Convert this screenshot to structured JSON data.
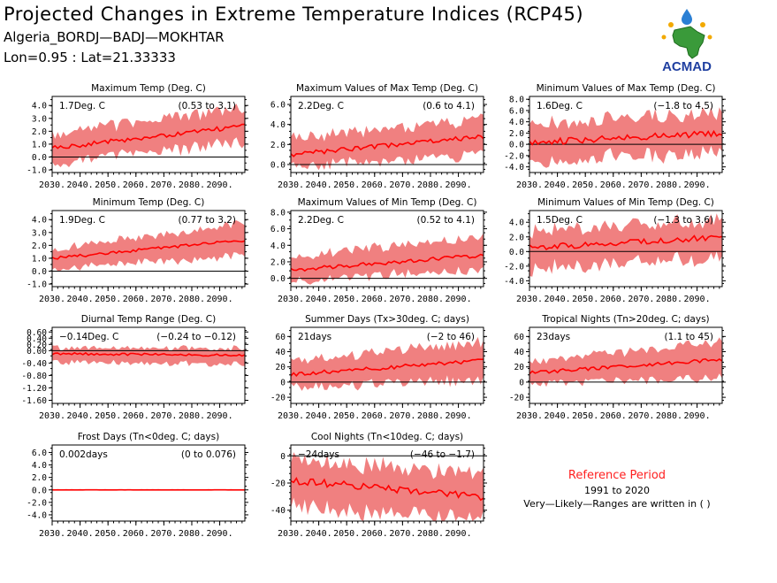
{
  "header": {
    "title": "Projected Changes in Extreme Temperature Indices (RCP45)",
    "station": "Algeria_BORDJ—BADJ—MOKHTAR",
    "coords": "Lon=0.95 : Lat=21.33333"
  },
  "logo": {
    "text": "ACMAD",
    "icon": "africa-map-logo"
  },
  "reference": {
    "title": "Reference Period",
    "years": "1991 to 2020",
    "note": "Very—Likely—Ranges are written in ( )"
  },
  "colors": {
    "band": "#f08080",
    "line": "#ff0000",
    "text": "#000000",
    "reference": "#ff2020"
  },
  "chart_data": [
    {
      "type": "area",
      "title": "Maximum Temp (Deg. C)",
      "value_label": "1.7Deg. C",
      "range_label": "(0.53 to 3.1)",
      "ylim": [
        -1.2,
        4.7
      ],
      "yticks": [
        -1.0,
        0.0,
        1.0,
        2.0,
        3.0,
        4.0
      ],
      "tick_labels": [
        "-1.0",
        "0.0",
        "1.0",
        "2.0",
        "3.0",
        "4.0"
      ],
      "x_start": 2030,
      "x_end": 2099,
      "xticks": [
        2030,
        2040,
        2050,
        2060,
        2070,
        2080,
        2090
      ],
      "x_tick_labels": [
        "2030.",
        "2040.",
        "2050.",
        "2060.",
        "2070.",
        "2080.",
        "2090."
      ],
      "median_start": 0.7,
      "median_end": 2.4,
      "low_start": -0.3,
      "low_end": 1.3,
      "high_start": 1.7,
      "high_end": 3.7
    },
    {
      "type": "area",
      "title": "Maximum Values of Max Temp (Deg. C)",
      "value_label": "2.2Deg. C",
      "range_label": "(0.6 to 4.1)",
      "ylim": [
        -0.8,
        6.8
      ],
      "yticks": [
        0.0,
        2.0,
        4.0,
        6.0
      ],
      "tick_labels": [
        "0.0",
        "2.0",
        "4.0",
        "6.0"
      ],
      "x_start": 2030,
      "x_end": 2099,
      "xticks": [
        2030,
        2040,
        2050,
        2060,
        2070,
        2080,
        2090
      ],
      "x_tick_labels": [
        "2030.",
        "2040.",
        "2050.",
        "2060.",
        "2070.",
        "2080.",
        "2090."
      ],
      "median_start": 1.0,
      "median_end": 2.8,
      "low_start": 0.0,
      "low_end": 1.2,
      "high_start": 2.5,
      "high_end": 4.4
    },
    {
      "type": "area",
      "title": "Minimum Values of Max Temp (Deg. C)",
      "value_label": "1.6Deg. C",
      "range_label": "(−1.8 to 4.5)",
      "ylim": [
        -5.0,
        8.5
      ],
      "yticks": [
        -4.0,
        -2.0,
        0.0,
        2.0,
        4.0,
        6.0,
        8.0
      ],
      "tick_labels": [
        "-4.0",
        "-2.0",
        "0.0",
        "2.0",
        "4.0",
        "6.0",
        "8.0"
      ],
      "x_start": 2030,
      "x_end": 2099,
      "xticks": [
        2030,
        2040,
        2050,
        2060,
        2070,
        2080,
        2090
      ],
      "x_tick_labels": [
        "2030.",
        "2040.",
        "2050.",
        "2060.",
        "2070.",
        "2080.",
        "2090."
      ],
      "median_start": 0.3,
      "median_end": 2.0,
      "low_start": -2.5,
      "low_end": -1.0,
      "high_start": 3.5,
      "high_end": 5.0
    },
    {
      "type": "area",
      "title": "Minimum Temp (Deg. C)",
      "value_label": "1.9Deg. C",
      "range_label": "(0.77 to 3.2)",
      "ylim": [
        -1.2,
        4.7
      ],
      "yticks": [
        -1.0,
        0.0,
        1.0,
        2.0,
        3.0,
        4.0
      ],
      "tick_labels": [
        "-1.0",
        "0.0",
        "1.0",
        "2.0",
        "3.0",
        "4.0"
      ],
      "x_start": 2030,
      "x_end": 2099,
      "xticks": [
        2030,
        2040,
        2050,
        2060,
        2070,
        2080,
        2090
      ],
      "x_tick_labels": [
        "2030.",
        "2040.",
        "2050.",
        "2060.",
        "2070.",
        "2080.",
        "2090."
      ],
      "median_start": 1.0,
      "median_end": 2.4,
      "low_start": 0.3,
      "low_end": 1.3,
      "high_start": 1.6,
      "high_end": 3.6
    },
    {
      "type": "area",
      "title": "Maximum Values of Min Temp (Deg. C)",
      "value_label": "2.2Deg. C",
      "range_label": "(0.52 to 4.1)",
      "ylim": [
        -1.0,
        8.2
      ],
      "yticks": [
        0.0,
        2.0,
        4.0,
        6.0,
        8.0
      ],
      "tick_labels": [
        "0.0",
        "2.0",
        "4.0",
        "6.0",
        "8.0"
      ],
      "x_start": 2030,
      "x_end": 2099,
      "xticks": [
        2030,
        2040,
        2050,
        2060,
        2070,
        2080,
        2090
      ],
      "x_tick_labels": [
        "2030.",
        "2040.",
        "2050.",
        "2060.",
        "2070.",
        "2080.",
        "2090."
      ],
      "median_start": 1.0,
      "median_end": 2.8,
      "low_start": 0.0,
      "low_end": 1.2,
      "high_start": 2.5,
      "high_end": 4.8
    },
    {
      "type": "area",
      "title": "Minimum Values of Min Temp (Deg. C)",
      "value_label": "1.5Deg. C",
      "range_label": "(−1.3 to 3.6)",
      "ylim": [
        -4.8,
        5.6
      ],
      "yticks": [
        -4.0,
        -2.0,
        0.0,
        2.0,
        4.0
      ],
      "tick_labels": [
        "-4.0",
        "-2.0",
        "0.0",
        "2.0",
        "4.0"
      ],
      "x_start": 2030,
      "x_end": 2099,
      "xticks": [
        2030,
        2040,
        2050,
        2060,
        2070,
        2080,
        2090
      ],
      "x_tick_labels": [
        "2030.",
        "2040.",
        "2050.",
        "2060.",
        "2070.",
        "2080.",
        "2090."
      ],
      "median_start": 0.5,
      "median_end": 2.0,
      "low_start": -2.0,
      "low_end": -0.5,
      "high_start": 2.5,
      "high_end": 4.0
    },
    {
      "type": "area",
      "title": "Diurnal Temp Range (Deg. C)",
      "value_label": "−0.14Deg. C",
      "range_label": "(−0.24 to −0.12)",
      "ylim": [
        -1.7,
        0.75
      ],
      "yticks": [
        -1.6,
        -1.2,
        -0.8,
        -0.4,
        0.0,
        0.2,
        0.4,
        0.6
      ],
      "tick_labels": [
        "-1.60",
        "-1.20",
        "-0.80",
        "-0.40",
        "0.00",
        "0.20",
        "0.40",
        "0.60"
      ],
      "x_start": 2030,
      "x_end": 2099,
      "xticks": [
        2030,
        2040,
        2050,
        2060,
        2070,
        2080,
        2090
      ],
      "x_tick_labels": [
        "2030.",
        "2040.",
        "2050.",
        "2060.",
        "2070.",
        "2080.",
        "2090."
      ],
      "median_start": -0.1,
      "median_end": -0.15,
      "low_start": -0.35,
      "low_end": -0.4,
      "high_start": 0.05,
      "high_end": 0.05
    },
    {
      "type": "area",
      "title": "Summer Days (Tx>30deg. C; days)",
      "value_label": "21days",
      "range_label": "(−2 to 46)",
      "ylim": [
        -28,
        72
      ],
      "yticks": [
        -20,
        0,
        20,
        40,
        60
      ],
      "tick_labels": [
        "-20",
        "0",
        "20",
        "40",
        "60"
      ],
      "x_start": 2030,
      "x_end": 2099,
      "xticks": [
        2030,
        2040,
        2050,
        2060,
        2070,
        2080,
        2090
      ],
      "x_tick_labels": [
        "2030.",
        "2040.",
        "2050.",
        "2060.",
        "2070.",
        "2080.",
        "2090."
      ],
      "median_start": 10,
      "median_end": 28,
      "low_start": -5,
      "low_end": 5,
      "high_start": 25,
      "high_end": 50
    },
    {
      "type": "area",
      "title": "Tropical Nights (Tn>20deg. C; days)",
      "value_label": "23days",
      "range_label": "(1.1 to 45)",
      "ylim": [
        -28,
        72
      ],
      "yticks": [
        -20,
        0,
        20,
        40,
        60
      ],
      "tick_labels": [
        "-20",
        "0",
        "20",
        "40",
        "60"
      ],
      "x_start": 2030,
      "x_end": 2099,
      "xticks": [
        2030,
        2040,
        2050,
        2060,
        2070,
        2080,
        2090
      ],
      "x_tick_labels": [
        "2030.",
        "2040.",
        "2050.",
        "2060.",
        "2070.",
        "2080.",
        "2090."
      ],
      "median_start": 12,
      "median_end": 30,
      "low_start": 0,
      "low_end": 8,
      "high_start": 25,
      "high_end": 52
    },
    {
      "type": "area",
      "title": "Frost Days (Tn<0deg. C; days)",
      "value_label": "0.002days",
      "range_label": "(0 to 0.076)",
      "ylim": [
        -5,
        7.2
      ],
      "yticks": [
        -4.0,
        -2.0,
        0.0,
        2.0,
        4.0,
        6.0
      ],
      "tick_labels": [
        "-4.0",
        "-2.0",
        "0.0",
        "2.0",
        "4.0",
        "6.0"
      ],
      "x_start": 2030,
      "x_end": 2099,
      "xticks": [
        2030,
        2040,
        2050,
        2060,
        2070,
        2080,
        2090
      ],
      "x_tick_labels": [
        "2030.",
        "2040.",
        "2050.",
        "2060.",
        "2070.",
        "2080.",
        "2090."
      ],
      "median_start": 0.0,
      "median_end": 0.0,
      "low_start": 0.0,
      "low_end": 0.0,
      "high_start": 0.05,
      "high_end": 0.05
    },
    {
      "type": "area",
      "title": "Cool Nights (Tn<10deg. C; days)",
      "value_label": "−24days",
      "range_label": "(−46 to −1.7)",
      "ylim": [
        -48,
        8
      ],
      "yticks": [
        -40,
        -20,
        0
      ],
      "tick_labels": [
        "-40",
        "-20",
        "0"
      ],
      "x_start": 2030,
      "x_end": 2099,
      "xticks": [
        2030,
        2040,
        2050,
        2060,
        2070,
        2080,
        2090
      ],
      "x_tick_labels": [
        "2030.",
        "2040.",
        "2050.",
        "2060.",
        "2070.",
        "2080.",
        "2090."
      ],
      "median_start": -18,
      "median_end": -30,
      "low_start": -35,
      "low_end": -44,
      "high_start": -5,
      "high_end": -15
    }
  ]
}
